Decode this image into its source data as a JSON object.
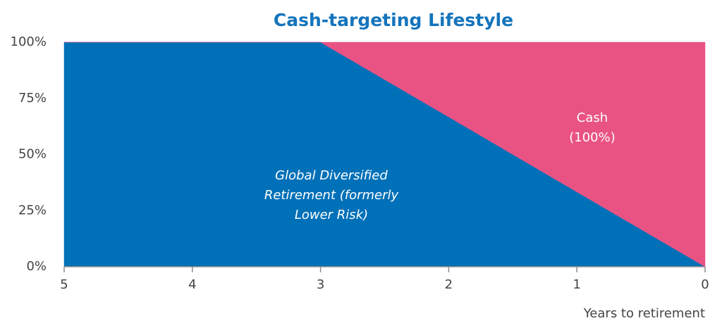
{
  "chart_data": {
    "type": "stacked_area",
    "title": "Cash-targeting Lifestyle",
    "x_label": "Years to retirement",
    "x": [
      5,
      4,
      3,
      2,
      1,
      0
    ],
    "series": [
      {
        "color": "#0070b8",
        "values": [
          100,
          100,
          100,
          66.7,
          33.3,
          0
        ]
      },
      {
        "color": "#e95383",
        "values": [
          0,
          0,
          0,
          33.3,
          66.7,
          100
        ]
      }
    ],
    "xlim": [
      5,
      0
    ],
    "xticks": [
      5,
      4,
      3,
      2,
      1,
      0
    ],
    "ylim": [
      0,
      100
    ],
    "yticks": [
      {
        "value": 0,
        "label": "0%"
      },
      {
        "value": 25,
        "label": "25%"
      },
      {
        "value": 50,
        "label": "50%"
      },
      {
        "value": 75,
        "label": "75%"
      },
      {
        "value": 100,
        "label": "100%"
      }
    ],
    "annotations": [
      {
        "lines": [
          "Global Diversified",
          "Retirement (formerly",
          "Lower Risk)"
        ]
      },
      {
        "lines": [
          "Cash",
          "(100%)"
        ]
      }
    ]
  }
}
